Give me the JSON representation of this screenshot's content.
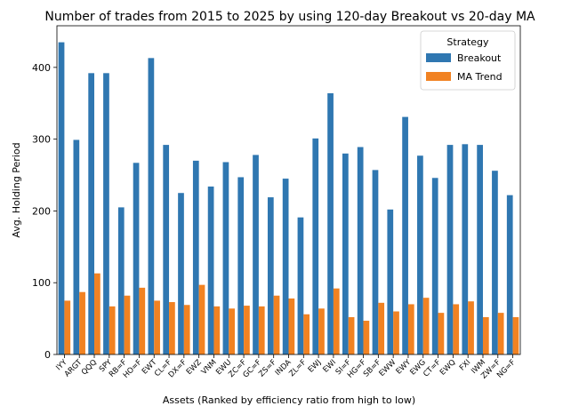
{
  "chart_data": {
    "type": "bar",
    "title": "Number of trades from 2015 to 2025 by using 120-day Breakout vs 20-day MA",
    "xlabel": "Assets (Ranked by efficiency ratio from high to low)",
    "ylabel": "Avg. Holding Period",
    "ylim": [
      0,
      458
    ],
    "yticks": [
      0,
      100,
      200,
      300,
      400
    ],
    "grid": false,
    "legend": {
      "title": "Strategy",
      "placement": "top-right"
    },
    "categories": [
      "IYY",
      "ARGT",
      "QQQ",
      "SPY",
      "RB=F",
      "HO=F",
      "EWT",
      "CL=F",
      "DX=F",
      "EWZ",
      "VNM",
      "EWU",
      "ZC=F",
      "GC=F",
      "ZS=F",
      "INDA",
      "ZL=F",
      "EWJ",
      "EWI",
      "SI=F",
      "HG=F",
      "SB=F",
      "EWW",
      "EWY",
      "EWG",
      "CT=F",
      "EWQ",
      "FXI",
      "IWM",
      "ZW=F",
      "NG=F"
    ],
    "series": [
      {
        "name": "Breakout",
        "color": "#2f77b1",
        "values": [
          435,
          299,
          392,
          392,
          205,
          267,
          413,
          292,
          225,
          270,
          234,
          268,
          247,
          278,
          219,
          245,
          191,
          301,
          364,
          280,
          289,
          257,
          202,
          331,
          277,
          246,
          292,
          293,
          292,
          256,
          222
        ]
      },
      {
        "name": "MA Trend",
        "color": "#f18222",
        "values": [
          75,
          87,
          113,
          67,
          82,
          93,
          75,
          73,
          69,
          97,
          67,
          64,
          68,
          67,
          82,
          78,
          56,
          64,
          92,
          52,
          47,
          72,
          60,
          70,
          79,
          58,
          70,
          74,
          52,
          58,
          52
        ]
      }
    ]
  }
}
